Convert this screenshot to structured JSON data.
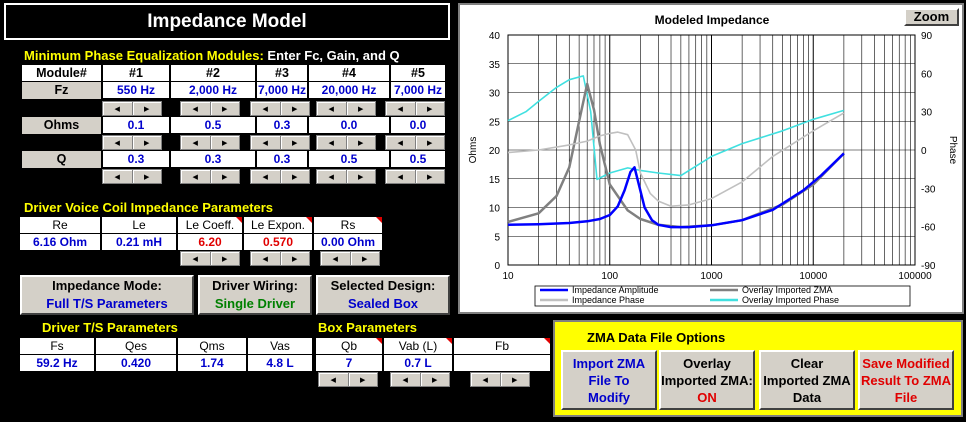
{
  "title": "Impedance Model",
  "eq": {
    "heading": "Minimum Phase Equalization Modules:",
    "heading2": " Enter Fc, Gain, and Q",
    "module_label": "Module#",
    "modules": [
      "#1",
      "#2",
      "#3",
      "#4",
      "#5"
    ],
    "fz_label": "Fz",
    "fz": [
      "550 Hz",
      "2,000 Hz",
      "7,000 Hz",
      "20,000 Hz",
      "7,000 Hz"
    ],
    "ohms_label": "Ohms",
    "ohms": [
      "0.1",
      "0.5",
      "0.3",
      "0.0",
      "0.0"
    ],
    "q_label": "Q",
    "q": [
      "0.3",
      "0.3",
      "0.3",
      "0.5",
      "0.5"
    ]
  },
  "vc": {
    "heading": "Driver Voice Coil Impedance Parameters",
    "headers": [
      "Re",
      "Le",
      "Le Coeff.",
      "Le Expon.",
      "Rs"
    ],
    "values": [
      "6.16 Ohm",
      "0.21 mH",
      "6.20",
      "0.570",
      "0.00 Ohm"
    ]
  },
  "buttons": {
    "mode_l1": "Impedance Mode:",
    "mode_l2": "Full T/S Parameters",
    "wiring_l1": "Driver Wiring:",
    "wiring_l2": "Single Driver",
    "design_l1": "Selected Design:",
    "design_l2": "Sealed Box"
  },
  "ts": {
    "heading": "Driver T/S Parameters",
    "headers": [
      "Fs",
      "Qes",
      "Qms",
      "Vas"
    ],
    "values": [
      "59.2 Hz",
      "0.420",
      "1.74",
      "4.8 L"
    ]
  },
  "box": {
    "heading": "Box Parameters",
    "headers": [
      "Qb",
      "Vab (L)",
      "Fb"
    ],
    "values": [
      "7",
      "0.7 L",
      ""
    ]
  },
  "zma": {
    "heading": "ZMA Data File Options",
    "import": [
      "Import ZMA",
      "File  To",
      "Modify"
    ],
    "overlay": [
      "Overlay",
      "Imported ZMA:",
      "ON"
    ],
    "clear": [
      "Clear",
      "Imported ZMA",
      "Data"
    ],
    "save": [
      "Save Modified",
      "Result To ZMA",
      "File"
    ]
  },
  "chart": {
    "zoom_label": "Zoom"
  },
  "chart_data": {
    "type": "line",
    "title": "Modeled Impedance",
    "xlabel": "",
    "ylabel": "Ohms",
    "y2label": "Phase",
    "xscale": "log",
    "xlim": [
      10,
      100000
    ],
    "ylim": [
      0,
      40
    ],
    "y2lim": [
      -90,
      90
    ],
    "x_ticks": [
      "10",
      "100",
      "1000",
      "10000",
      "100000"
    ],
    "y_ticks": [
      "0",
      "5",
      "10",
      "15",
      "20",
      "25",
      "30",
      "35",
      "40"
    ],
    "y2_ticks": [
      "-90",
      "-60",
      "-30",
      "0",
      "30",
      "60",
      "90"
    ],
    "grid": true,
    "legend_position": "bottom",
    "series": [
      {
        "name": "Impedance Amplitude",
        "axis": "left",
        "color": "#0000ff",
        "x": [
          10,
          20,
          40,
          60,
          80,
          100,
          120,
          140,
          160,
          175,
          190,
          220,
          260,
          300,
          400,
          600,
          1000,
          2000,
          4000,
          8000,
          12000,
          20000
        ],
        "y": [
          7.0,
          7.1,
          7.3,
          7.6,
          8.0,
          8.7,
          10.2,
          13.0,
          16.2,
          17.0,
          14.5,
          10.0,
          7.8,
          7.0,
          6.6,
          6.6,
          6.9,
          7.8,
          9.6,
          13.0,
          15.6,
          19.4
        ]
      },
      {
        "name": "Impedance Phase",
        "axis": "right",
        "color": "#c0c0c0",
        "x": [
          10,
          20,
          40,
          60,
          80,
          100,
          120,
          150,
          180,
          200,
          250,
          300,
          400,
          600,
          1000,
          2000,
          4000,
          10000,
          20000
        ],
        "y": [
          -2,
          0,
          4,
          7,
          11,
          13,
          14,
          12,
          0,
          -18,
          -34,
          -40,
          -44,
          -43,
          -38,
          -25,
          -5,
          15,
          29
        ]
      },
      {
        "name": "Overlay Imported ZMA",
        "axis": "left",
        "color": "#808080",
        "x": [
          10,
          20,
          30,
          40,
          50,
          60,
          70,
          80,
          100,
          150,
          200,
          300,
          500,
          1000,
          2000,
          5000,
          10000,
          20000
        ],
        "y": [
          7.5,
          9.0,
          12.0,
          17.0,
          25.0,
          31.5,
          27.0,
          21.0,
          14.0,
          9.5,
          8.0,
          7.0,
          6.6,
          6.9,
          7.8,
          10.5,
          14.0,
          19.4
        ]
      },
      {
        "name": "Overlay Imported Phase",
        "axis": "right",
        "color": "#40e0e0",
        "x": [
          10,
          15,
          20,
          30,
          40,
          55,
          65,
          75,
          100,
          150,
          200,
          300,
          500,
          1000,
          2000,
          5000,
          10000,
          20000
        ],
        "y": [
          23,
          30,
          38,
          49,
          55,
          58,
          30,
          -23,
          -18,
          -14,
          -16,
          -18,
          -20,
          -5,
          5,
          15,
          24,
          31
        ]
      }
    ]
  }
}
